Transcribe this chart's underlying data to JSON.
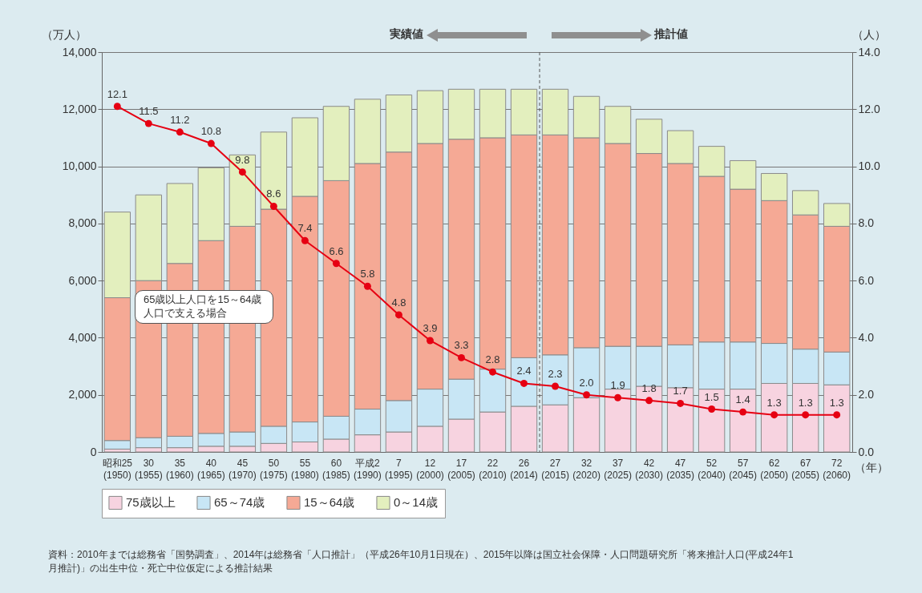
{
  "chart_data": {
    "type": "bar",
    "stacked": true,
    "categories": [
      "昭和25\n(1950)",
      "30\n(1955)",
      "35\n(1960)",
      "40\n(1965)",
      "45\n(1970)",
      "50\n(1975)",
      "55\n(1980)",
      "60\n(1985)",
      "平成2\n(1990)",
      "7\n(1995)",
      "12\n(2000)",
      "17\n(2005)",
      "22\n(2010)",
      "26\n(2014)",
      "27\n(2015)",
      "32\n(2020)",
      "37\n(2025)",
      "42\n(2030)",
      "47\n(2035)",
      "52\n(2040)",
      "57\n(2045)",
      "62\n(2050)",
      "67\n(2055)",
      "72\n(2060)"
    ],
    "series": [
      {
        "name": "75歳以上",
        "color": "#f7d3e0",
        "values": [
          100,
          150,
          150,
          200,
          200,
          300,
          350,
          450,
          600,
          700,
          900,
          1150,
          1400,
          1600,
          1650,
          1900,
          2200,
          2300,
          2250,
          2200,
          2200,
          2400,
          2400,
          2350
        ]
      },
      {
        "name": "65～74歳",
        "color": "#c8e6f5",
        "values": [
          300,
          350,
          400,
          450,
          500,
          600,
          700,
          800,
          900,
          1100,
          1300,
          1400,
          1500,
          1700,
          1750,
          1750,
          1500,
          1400,
          1500,
          1650,
          1650,
          1400,
          1200,
          1150
        ]
      },
      {
        "name": "15～64歳",
        "color": "#f5a995",
        "values": [
          5000,
          5500,
          6050,
          6750,
          7200,
          7600,
          7900,
          8250,
          8600,
          8700,
          8600,
          8400,
          8100,
          7800,
          7700,
          7350,
          7100,
          6750,
          6350,
          5800,
          5350,
          5000,
          4700,
          4400
        ]
      },
      {
        "name": "0～14歳",
        "color": "#e3efbe",
        "values": [
          3000,
          3000,
          2800,
          2550,
          2500,
          2700,
          2750,
          2600,
          2250,
          2000,
          1850,
          1750,
          1700,
          1600,
          1600,
          1450,
          1300,
          1200,
          1150,
          1050,
          1000,
          950,
          850,
          800
        ]
      },
      {
        "type": "line",
        "axis": "y2",
        "color": "#e60012",
        "marker": "circle",
        "values": [
          12.1,
          11.5,
          11.2,
          10.8,
          9.8,
          8.6,
          7.4,
          6.6,
          5.8,
          4.8,
          3.9,
          3.3,
          2.8,
          2.4,
          2.3,
          2.0,
          1.9,
          1.8,
          1.7,
          1.5,
          1.4,
          1.3,
          1.3,
          1.3
        ],
        "value_labels": [
          "12.1",
          "11.5",
          "11.2",
          "10.8",
          "9.8",
          "8.6",
          "7.4",
          "6.6",
          "5.8",
          "4.8",
          "3.9",
          "3.3",
          "2.8",
          "2.4",
          "2.3",
          "2.0",
          "1.9",
          "1.8",
          "1.7",
          "1.5",
          "1.4",
          "1.3",
          "1.3",
          "1.3"
        ]
      }
    ],
    "ylabel": "（万人）",
    "y2label": "（人）",
    "xlabel": "（年）",
    "ylim": [
      0,
      14000
    ],
    "yticks": [
      0,
      {
        "value": 2000,
        "label": "2,000"
      },
      {
        "value": 4000,
        "label": "4,000"
      },
      {
        "value": 6000,
        "label": "6,000"
      },
      {
        "value": 8000,
        "label": "8,000"
      },
      {
        "value": 10000,
        "label": "10,000"
      },
      {
        "value": 12000,
        "label": "12,000"
      },
      {
        "value": 14000,
        "label": "14,000"
      }
    ],
    "y2lim": [
      0,
      14
    ],
    "y2ticks": [
      {
        "value": 0,
        "label": "0.0"
      },
      {
        "value": 2,
        "label": "2.0"
      },
      {
        "value": 4,
        "label": "4.0"
      },
      {
        "value": 6,
        "label": "6.0"
      },
      {
        "value": 8,
        "label": "8.0"
      },
      {
        "value": 10,
        "label": "10.0"
      },
      {
        "value": 12,
        "label": "12.0"
      },
      {
        "value": 14,
        "label": "14.0"
      }
    ],
    "grid": "y",
    "legend": "bottom",
    "ref_lines": [
      {
        "axis": "x",
        "value": "26\n(2014)",
        "line_style": "dashed",
        "color": "#555555"
      }
    ],
    "annotations": [
      "実績値",
      "推計値",
      "65歳以上人口を15～64歳人口で支える場合",
      "資料：2010年までは総務省「国勢調査」、2014年は総務省「人口推計」（平成26年10月1日現在）、2015年以降は国立社会保障・人口問題研究所「将来推計人口(平成24年1月推計)」の出生中位・死亡中位仮定による推計結果"
    ]
  }
}
